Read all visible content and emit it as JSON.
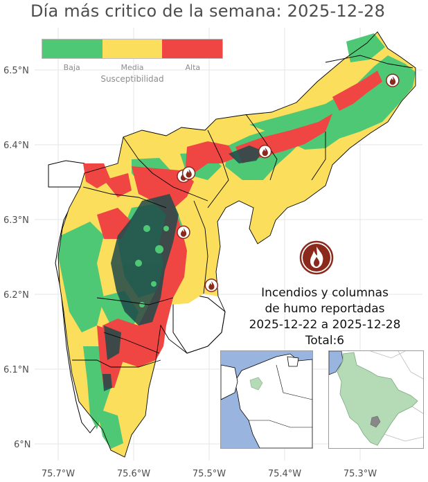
{
  "title": "Día más critico de la semana: 2025-12-28",
  "legend": {
    "title": "Susceptibilidad",
    "items": [
      {
        "label": "Baja",
        "color": "#4fc876"
      },
      {
        "label": "Media",
        "color": "#fbde5c"
      },
      {
        "label": "Alta",
        "color": "#ef4543"
      }
    ]
  },
  "axes": {
    "lon_ticks": [
      "75.7°W",
      "75.6°W",
      "75.5°W",
      "75.4°W",
      "75.3°W"
    ],
    "lat_ticks": [
      "6.5°N",
      "6.4°N",
      "6.3°N",
      "6.2°N",
      "6.1°N",
      "6°N"
    ]
  },
  "report": {
    "line1": "Incendios y columnas",
    "line2": "de humo reportadas",
    "line3": "2025-12-22 a 2025-12-28",
    "line4": "Total:6"
  },
  "fire_points": [
    {
      "lon": -75.257,
      "lat": 6.486
    },
    {
      "lon": -75.426,
      "lat": 6.391
    },
    {
      "lon": -75.534,
      "lat": 6.358
    },
    {
      "lon": -75.527,
      "lat": 6.362
    },
    {
      "lon": -75.534,
      "lat": 6.283
    },
    {
      "lon": -75.497,
      "lat": 6.212
    }
  ],
  "colors": {
    "water": "#9ab4e0",
    "urban": "#1f4a4a",
    "fire_icon": "#8b2a1c"
  },
  "icons": {
    "fire": "fire-icon"
  }
}
